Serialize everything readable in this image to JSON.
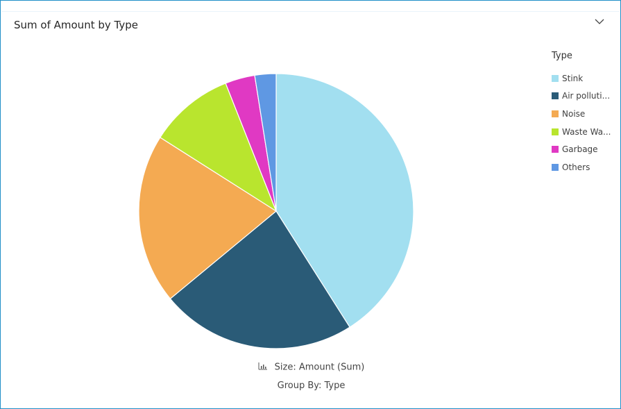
{
  "header": {
    "title": "Sum of Amount by Type"
  },
  "legend": {
    "title": "Type",
    "items": [
      {
        "label": "Stink",
        "color": "#a2dff0"
      },
      {
        "label": "Air polluti...",
        "color": "#2a5b77"
      },
      {
        "label": "Noise",
        "color": "#f4aa52"
      },
      {
        "label": "Waste Wa...",
        "color": "#b9e52e"
      },
      {
        "label": "Garbage",
        "color": "#e039c3"
      },
      {
        "label": "Others",
        "color": "#5f98e3"
      }
    ]
  },
  "footer": {
    "size_label": "Size: Amount (Sum)",
    "group_label": "Group By: Type"
  },
  "chart_data": {
    "type": "pie",
    "title": "Sum of Amount by Type",
    "legend_title": "Type",
    "legend_position": "right",
    "categories": [
      "Stink",
      "Air polluti...",
      "Noise",
      "Waste Wa...",
      "Garbage",
      "Others"
    ],
    "values": [
      41,
      23,
      20,
      10,
      3.5,
      2.5
    ],
    "colors": [
      "#a2dff0",
      "#2a5b77",
      "#f4aa52",
      "#b9e52e",
      "#e039c3",
      "#5f98e3"
    ]
  }
}
